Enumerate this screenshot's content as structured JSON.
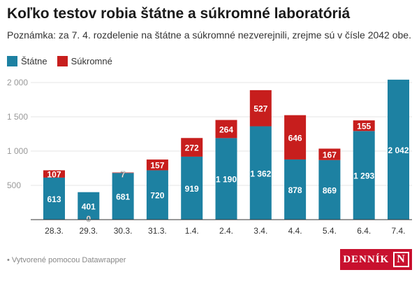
{
  "header": {
    "title": "Koľko testov robia štátne a súkromné laboratóriá",
    "subtitle": "Poznámka: za 7. 4. rozdelenie na štátne a súkromné nezverejnili, zrejme sú v čísle 2042 obe."
  },
  "footer": {
    "credit": "• Vytvorené pomocou Datawrapper",
    "logo": "DENNÍK N"
  },
  "chart_data": {
    "type": "bar",
    "stacked": true,
    "categories": [
      "28.3.",
      "29.3.",
      "30.3.",
      "31.3.",
      "1.4.",
      "2.4.",
      "3.4.",
      "4.4.",
      "5.4.",
      "6.4.",
      "7.4."
    ],
    "series": [
      {
        "name": "Štátne",
        "color": "#1d81a2",
        "values": [
          613,
          401,
          681,
          720,
          919,
          1190,
          1362,
          878,
          869,
          1293,
          2042
        ],
        "labels": [
          "613",
          "401",
          "681",
          "720",
          "919",
          "1 190",
          "1 362",
          "878",
          "869",
          "1 293",
          "2 042"
        ]
      },
      {
        "name": "Súkromné",
        "color": "#c71e1d",
        "values": [
          107,
          0,
          7,
          157,
          272,
          264,
          527,
          646,
          167,
          155,
          null
        ],
        "labels": [
          "107",
          "0",
          "7",
          "157",
          "272",
          "264",
          "527",
          "646",
          "167",
          "155",
          ""
        ]
      }
    ],
    "ylim": [
      0,
      2000
    ],
    "yticks": [
      500,
      1000,
      1500,
      2000
    ],
    "ytick_labels": [
      "500",
      "1 000",
      "1 500",
      "2 000"
    ],
    "grid": true,
    "legend": "top-left"
  }
}
